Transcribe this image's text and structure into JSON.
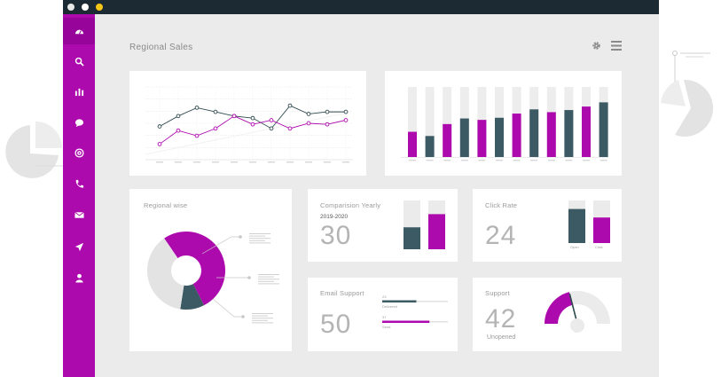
{
  "page": {
    "title": "Regional Sales"
  },
  "icons": {
    "sidebar": [
      "dashboard-icon",
      "search-icon",
      "bar-chart-icon",
      "chat-icon",
      "at-sign-icon",
      "phone-icon",
      "mail-icon",
      "send-icon",
      "user-icon"
    ],
    "header": [
      "gear-icon",
      "menu-icon"
    ]
  },
  "colors": {
    "accent": "#ad0aad",
    "dark": "#3b5a63",
    "sidebar": "#ad0aad",
    "titlebar": "#1c2b33"
  },
  "window_buttons": [
    "#e8e8e8",
    "#ffffff",
    "#f5c518"
  ],
  "cards": {
    "regional_wise": {
      "title": "Regional wise"
    },
    "comparison": {
      "title": "Comparision Yearly",
      "period": "2019-2020",
      "value": "30"
    },
    "click_rate": {
      "title": "Click Rate",
      "value": "24",
      "labels": [
        "Open",
        "Click"
      ]
    },
    "email_support": {
      "title": "Email Support",
      "value": "50",
      "bars": [
        {
          "label": "Delivered",
          "number": "23"
        },
        {
          "label": "Send",
          "number": "37"
        }
      ]
    },
    "support": {
      "title": "Support",
      "value": "42",
      "label": "Unopened"
    }
  },
  "chart_data": [
    {
      "type": "line",
      "x": [
        1,
        2,
        3,
        4,
        5,
        6,
        7,
        8,
        9,
        10,
        11
      ],
      "series": [
        {
          "color": "#2f4a4f",
          "values": [
            62,
            72,
            80,
            76,
            72,
            70,
            60,
            82,
            74,
            76,
            76
          ]
        },
        {
          "color": "#ad0aad",
          "values": [
            45,
            58,
            53,
            60,
            72,
            64,
            68,
            60,
            65,
            64,
            68
          ]
        }
      ],
      "ylim": [
        30,
        100
      ],
      "grid": true
    },
    {
      "type": "bar",
      "x": [
        1,
        2,
        3,
        4,
        5,
        6,
        7,
        8,
        9,
        10,
        11,
        12
      ],
      "values": [
        36,
        30,
        47,
        55,
        53,
        56,
        62,
        68,
        64,
        67,
        72,
        78
      ],
      "ymax": 100,
      "colors": [
        "#ad0aad",
        "#3b5a63",
        "#ad0aad",
        "#3b5a63",
        "#ad0aad",
        "#3b5a63",
        "#ad0aad",
        "#3b5a63",
        "#ad0aad",
        "#3b5a63",
        "#ad0aad",
        "#3b5a63"
      ]
    },
    {
      "type": "pie",
      "slices": [
        {
          "value": 52,
          "color": "#ad0aad"
        },
        {
          "value": 10,
          "color": "#3b5a63"
        },
        {
          "value": 38,
          "color": "#e3e3e3"
        }
      ]
    },
    {
      "type": "bar",
      "values": [
        45,
        72
      ],
      "ymax": 100,
      "colors": [
        "#3b5a63",
        "#ad0aad"
      ]
    },
    {
      "type": "bar",
      "values": [
        80,
        60
      ],
      "ymax": 100,
      "colors": [
        "#3b5a63",
        "#ad0aad"
      ]
    }
  ],
  "email_progress": [
    0.52,
    0.72
  ],
  "gauge_fraction": 0.42
}
